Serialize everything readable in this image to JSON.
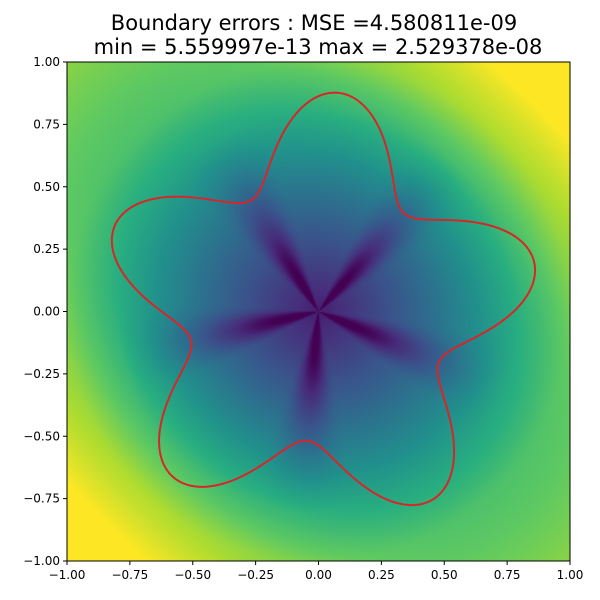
{
  "chart_data": {
    "type": "heatmap",
    "title_line1": "Boundary errors : MSE =4.580811e-09",
    "title_line2": "min = 5.559997e-13 max = 2.529378e-08",
    "xlim": [
      -1.0,
      1.0
    ],
    "ylim": [
      -1.0,
      1.0
    ],
    "x_ticks": [
      -1.0,
      -0.75,
      -0.5,
      -0.25,
      0.0,
      0.25,
      0.5,
      0.75,
      1.0
    ],
    "y_ticks": [
      -1.0,
      -0.75,
      -0.5,
      -0.25,
      0.0,
      0.25,
      0.5,
      0.75,
      1.0
    ],
    "x_tick_labels": [
      "−1.00",
      "−0.75",
      "−0.50",
      "−0.25",
      "0.00",
      "0.25",
      "0.50",
      "0.75",
      "1.00"
    ],
    "y_tick_labels": [
      "−1.00",
      "−0.75",
      "−0.50",
      "−0.25",
      "0.00",
      "0.25",
      "0.50",
      "0.75",
      "1.00"
    ],
    "colormap": "viridis",
    "colormap_stops": [
      "#440154",
      "#472d7b",
      "#3b528b",
      "#2c728e",
      "#21918c",
      "#28ae80",
      "#5ec962",
      "#addc30",
      "#fde725"
    ],
    "boundary_curve": {
      "color": "#d62728",
      "shape": "star (five-lobed)",
      "lobes": 5,
      "mean_radius": 0.7,
      "lobe_amplitude": 0.18,
      "phase_deg": 13
    },
    "grid": false,
    "legend": "none"
  }
}
